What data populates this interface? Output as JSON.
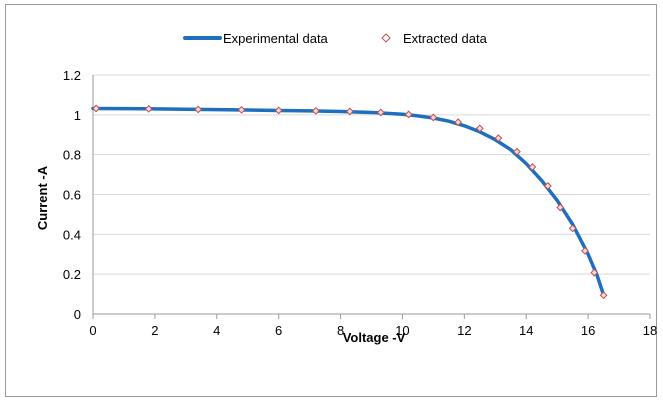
{
  "chart_data": {
    "type": "line",
    "title": "",
    "xlabel": "Voltage -V",
    "ylabel": "Current -A",
    "xlim": [
      0,
      18
    ],
    "ylim": [
      0,
      1.2
    ],
    "xticks": [
      "0",
      "2",
      "4",
      "6",
      "8",
      "10",
      "12",
      "14",
      "16",
      "18"
    ],
    "yticks": [
      "0",
      "0.2",
      "0.4",
      "0.6",
      "0.8",
      "1",
      "1.2"
    ],
    "grid": "horizontal",
    "legend_position": "top",
    "series": [
      {
        "name": "Experimental data",
        "style": "line",
        "color": "#1f6fbf",
        "x": [
          0,
          1,
          2,
          3,
          4,
          5,
          6,
          7,
          8,
          9,
          10,
          10.5,
          11,
          11.5,
          12,
          12.5,
          13,
          13.5,
          14,
          14.5,
          15,
          15.5,
          16,
          16.3,
          16.5
        ],
        "y": [
          1.032,
          1.031,
          1.03,
          1.028,
          1.026,
          1.024,
          1.022,
          1.02,
          1.017,
          1.012,
          1.003,
          0.995,
          0.984,
          0.968,
          0.945,
          0.915,
          0.875,
          0.825,
          0.755,
          0.67,
          0.57,
          0.45,
          0.3,
          0.19,
          0.095
        ]
      },
      {
        "name": "Extracted data",
        "style": "marker",
        "color": "#c0504d",
        "x": [
          0.1,
          1.8,
          3.4,
          4.8,
          6.0,
          7.2,
          8.3,
          9.3,
          10.2,
          11.0,
          11.8,
          12.5,
          13.1,
          13.7,
          14.2,
          14.7,
          15.1,
          15.5,
          15.9,
          16.2,
          16.5
        ],
        "y": [
          1.032,
          1.03,
          1.027,
          1.025,
          1.022,
          1.02,
          1.017,
          1.012,
          1.002,
          0.987,
          0.963,
          0.932,
          0.883,
          0.815,
          0.738,
          0.643,
          0.535,
          0.43,
          0.317,
          0.208,
          0.094
        ]
      }
    ]
  }
}
